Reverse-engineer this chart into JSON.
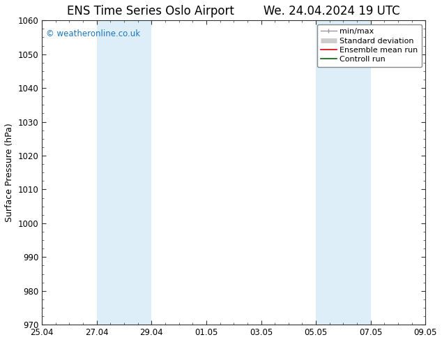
{
  "title_left": "ENS Time Series Oslo Airport",
  "title_right": "We. 24.04.2024 19 UTC",
  "ylabel": "Surface Pressure (hPa)",
  "ylim": [
    970,
    1060
  ],
  "yticks": [
    970,
    980,
    990,
    1000,
    1010,
    1020,
    1030,
    1040,
    1050,
    1060
  ],
  "xtick_labels": [
    "25.04",
    "27.04",
    "29.04",
    "01.05",
    "03.05",
    "05.05",
    "07.05",
    "09.05"
  ],
  "xtick_positions": [
    0,
    2,
    4,
    6,
    8,
    10,
    12,
    14
  ],
  "xlim": [
    0,
    14
  ],
  "shaded_bands": [
    {
      "x_start": 2,
      "x_end": 4,
      "color": "#ddeef8"
    },
    {
      "x_start": 10,
      "x_end": 12,
      "color": "#ddeef8"
    }
  ],
  "copyright_text": "© weatheronline.co.uk",
  "copyright_color": "#1a75bc",
  "background_color": "#ffffff",
  "title_fontsize": 12,
  "axis_label_fontsize": 9,
  "tick_fontsize": 8.5,
  "legend_fontsize": 8
}
